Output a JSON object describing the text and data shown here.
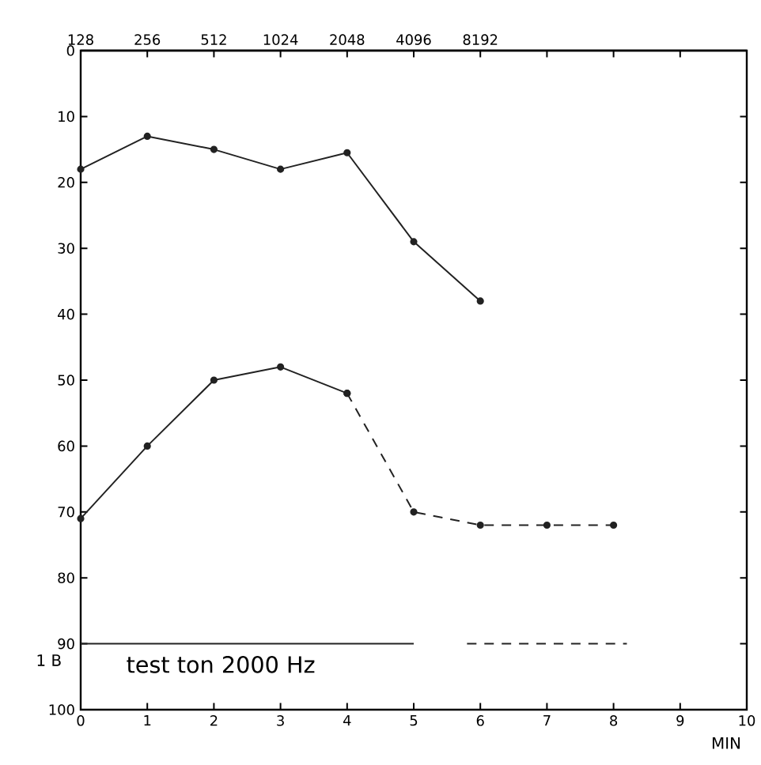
{
  "chart_data": {
    "type": "line",
    "xlabel": "MIN",
    "xlim": [
      0,
      10
    ],
    "xticks": [
      0,
      1,
      2,
      3,
      4,
      5,
      6,
      7,
      8,
      9,
      10
    ],
    "ylim": [
      100,
      0
    ],
    "yticks": [
      0,
      10,
      20,
      30,
      40,
      50,
      60,
      70,
      80,
      90,
      100
    ],
    "x2lim": [
      128,
      131072
    ],
    "log": "x2",
    "x2ticks": [
      128,
      256,
      512,
      1024,
      2048,
      4096,
      8192,
      {
        "value": 16384,
        "label": null
      },
      {
        "value": 32768,
        "label": null
      },
      {
        "value": 65536,
        "label": null
      }
    ],
    "annotations": [
      "test ton 2000 Hz",
      "1 B"
    ],
    "grid": false,
    "series": [
      {
        "color": "#222222",
        "x": [
          0,
          1,
          2,
          3,
          4,
          5,
          6
        ],
        "values": [
          18,
          13,
          15,
          18,
          15.5,
          29,
          38
        ],
        "line_style": "solid",
        "marker": "circle"
      },
      {
        "color": "#222222",
        "x": [
          0,
          1,
          2,
          3,
          4
        ],
        "values": [
          71,
          60,
          50,
          48,
          52
        ],
        "line_style": "solid",
        "marker": "circle"
      },
      {
        "color": "#222222",
        "x": [
          4,
          5,
          6,
          7,
          8
        ],
        "values": [
          52,
          70,
          72,
          72,
          72
        ],
        "line_style": "dashed",
        "marker": "circle"
      },
      {
        "color": "#222222",
        "x": [
          0,
          5
        ],
        "values": [
          90,
          90
        ],
        "line_style": "solid",
        "marker": "none"
      },
      {
        "color": "#222222",
        "x": [
          5.8,
          8.2
        ],
        "values": [
          90,
          90
        ],
        "line_style": "dashed",
        "marker": "none"
      }
    ]
  }
}
